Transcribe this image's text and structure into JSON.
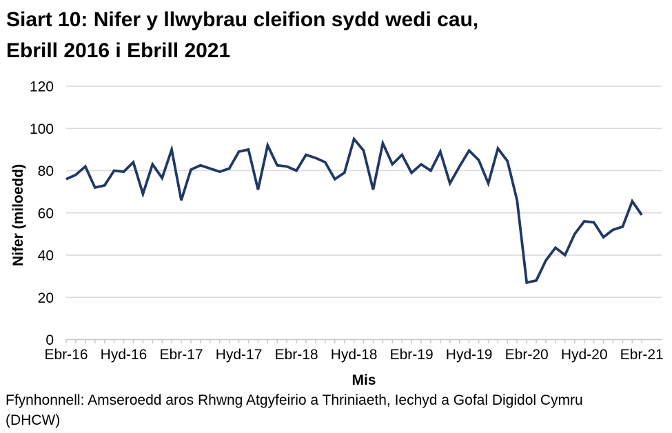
{
  "title": {
    "lines": [
      "Siart 10: Nifer y llwybrau cleifion sydd wedi cau,",
      "Ebrill 2016 i Ebrill 2021"
    ]
  },
  "footer": {
    "source_lines": [
      "Ffynhonnell: Amseroedd aros Rhwng Atgyfeirio a Thriniaeth, Iechyd a Gofal Digidol Cymru",
      "(DHCW)"
    ]
  },
  "colors": {
    "line": "#1f3864",
    "gridline": "#d9d9d9",
    "axis": "#c6c6c6",
    "text": "#000000"
  },
  "chart_data": {
    "type": "line",
    "title": "Siart 10: Nifer y llwybrau cleifion sydd wedi cau, Ebrill 2016 i Ebrill 2021",
    "xlabel": "Mis",
    "ylabel": "Nifer (miloedd)",
    "ylim": [
      0,
      120
    ],
    "yticks": [
      0,
      20,
      40,
      60,
      80,
      100,
      120
    ],
    "grid": "horizontal",
    "legend_position": "none",
    "x_tick_labels_shown": [
      "Ebr-16",
      "Hyd-16",
      "Ebr-17",
      "Hyd-17",
      "Ebr-18",
      "Hyd-18",
      "Ebr-19",
      "Hyd-19",
      "Ebr-20",
      "Hyd-20",
      "Ebr-21"
    ],
    "x": [
      "Ebr-16",
      "Mai-16",
      "Meh-16",
      "Gor-16",
      "Aws-16",
      "Med-16",
      "Hyd-16",
      "Tach-16",
      "Rhag-16",
      "Ion-17",
      "Chwe-17",
      "Maw-17",
      "Ebr-17",
      "Mai-17",
      "Meh-17",
      "Gor-17",
      "Aws-17",
      "Med-17",
      "Hyd-17",
      "Tach-17",
      "Rhag-17",
      "Ion-18",
      "Chwe-18",
      "Maw-18",
      "Ebr-18",
      "Mai-18",
      "Meh-18",
      "Gor-18",
      "Aws-18",
      "Med-18",
      "Hyd-18",
      "Tach-18",
      "Rhag-18",
      "Ion-19",
      "Chwe-19",
      "Maw-19",
      "Ebr-19",
      "Mai-19",
      "Meh-19",
      "Gor-19",
      "Aws-19",
      "Med-19",
      "Hyd-19",
      "Tach-19",
      "Rhag-19",
      "Ion-20",
      "Chwe-20",
      "Maw-20",
      "Ebr-20",
      "Mai-20",
      "Meh-20",
      "Gor-20",
      "Aws-20",
      "Med-20",
      "Hyd-20",
      "Tach-20",
      "Rhag-20",
      "Ion-21",
      "Chwe-21",
      "Maw-21",
      "Ebr-21"
    ],
    "series": [
      {
        "name": "Nifer y llwybrau cleifion sydd wedi cau (miloedd)",
        "values": [
          76,
          78,
          82,
          72,
          73,
          80,
          79.5,
          84,
          69,
          83,
          76.5,
          90,
          66,
          80.5,
          82.5,
          81,
          79.5,
          81,
          89,
          90,
          71,
          92,
          82.5,
          82,
          80,
          87.5,
          86,
          84,
          76,
          79,
          95,
          89.5,
          71,
          93,
          83,
          87.5,
          79,
          83,
          80,
          89,
          74,
          82,
          89.5,
          85,
          74,
          90.5,
          84.5,
          66,
          27,
          28,
          37.5,
          43.5,
          40,
          50,
          56,
          55.5,
          48.5,
          52,
          53.5,
          65.5,
          59
        ]
      }
    ]
  }
}
